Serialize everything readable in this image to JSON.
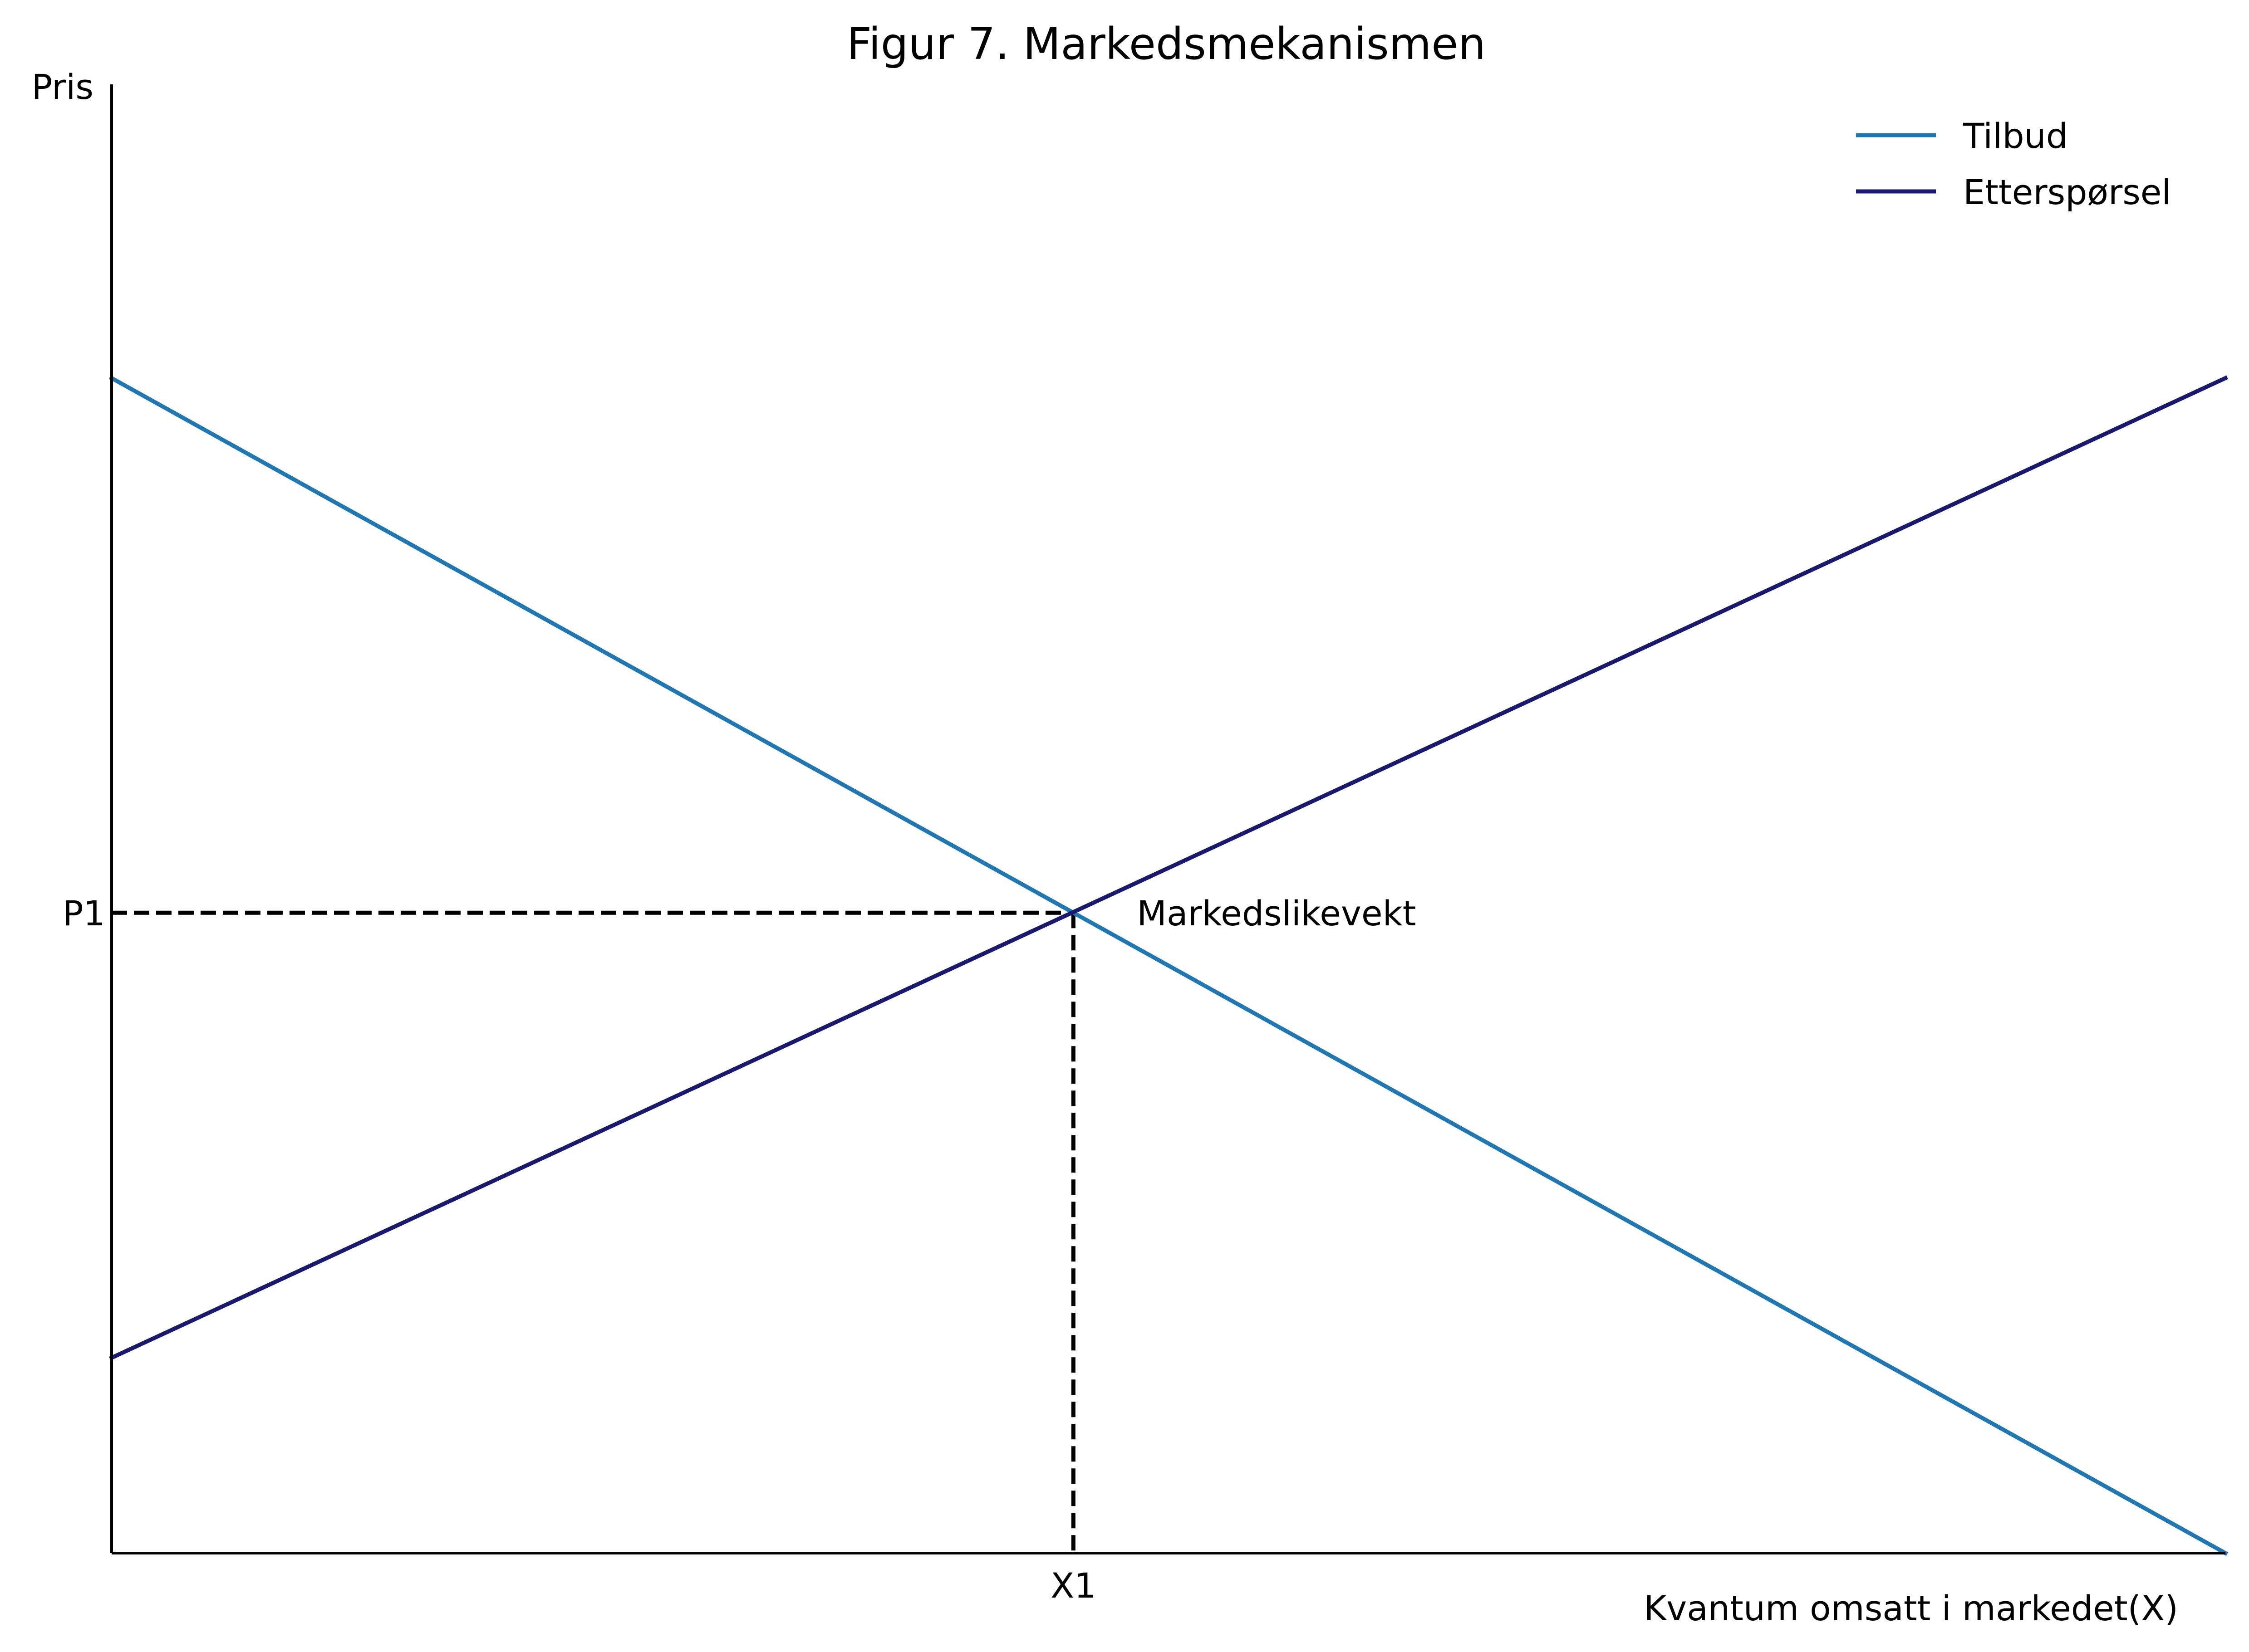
{
  "chart_data": {
    "type": "line",
    "title": "Figur 7. Markedsmekanismen",
    "xlabel": "Kvantum omsatt i markedet(X)",
    "ylabel": "Pris",
    "xlim": [
      0,
      10
    ],
    "ylim": [
      0,
      10
    ],
    "grid": false,
    "legend_position": "top-right",
    "series": [
      {
        "name": "Tilbud",
        "color": "#1f77b4",
        "x": [
          0,
          10
        ],
        "y": [
          8,
          0
        ]
      },
      {
        "name": "Etterspørsel",
        "color": "#191970",
        "x": [
          0,
          10
        ],
        "y": [
          1.33,
          8
        ]
      }
    ],
    "reference_lines": {
      "x_value": 4.55,
      "y_value": 4.36,
      "style": "dashed",
      "color": "#000000"
    },
    "x_ticks": [
      {
        "value": 4.55,
        "label": "X1"
      }
    ],
    "y_ticks": [
      {
        "value": 4.36,
        "label": "P1"
      }
    ],
    "annotations": [
      {
        "x": 4.55,
        "y": 4.36,
        "text": "Markedslikevekt"
      }
    ]
  }
}
